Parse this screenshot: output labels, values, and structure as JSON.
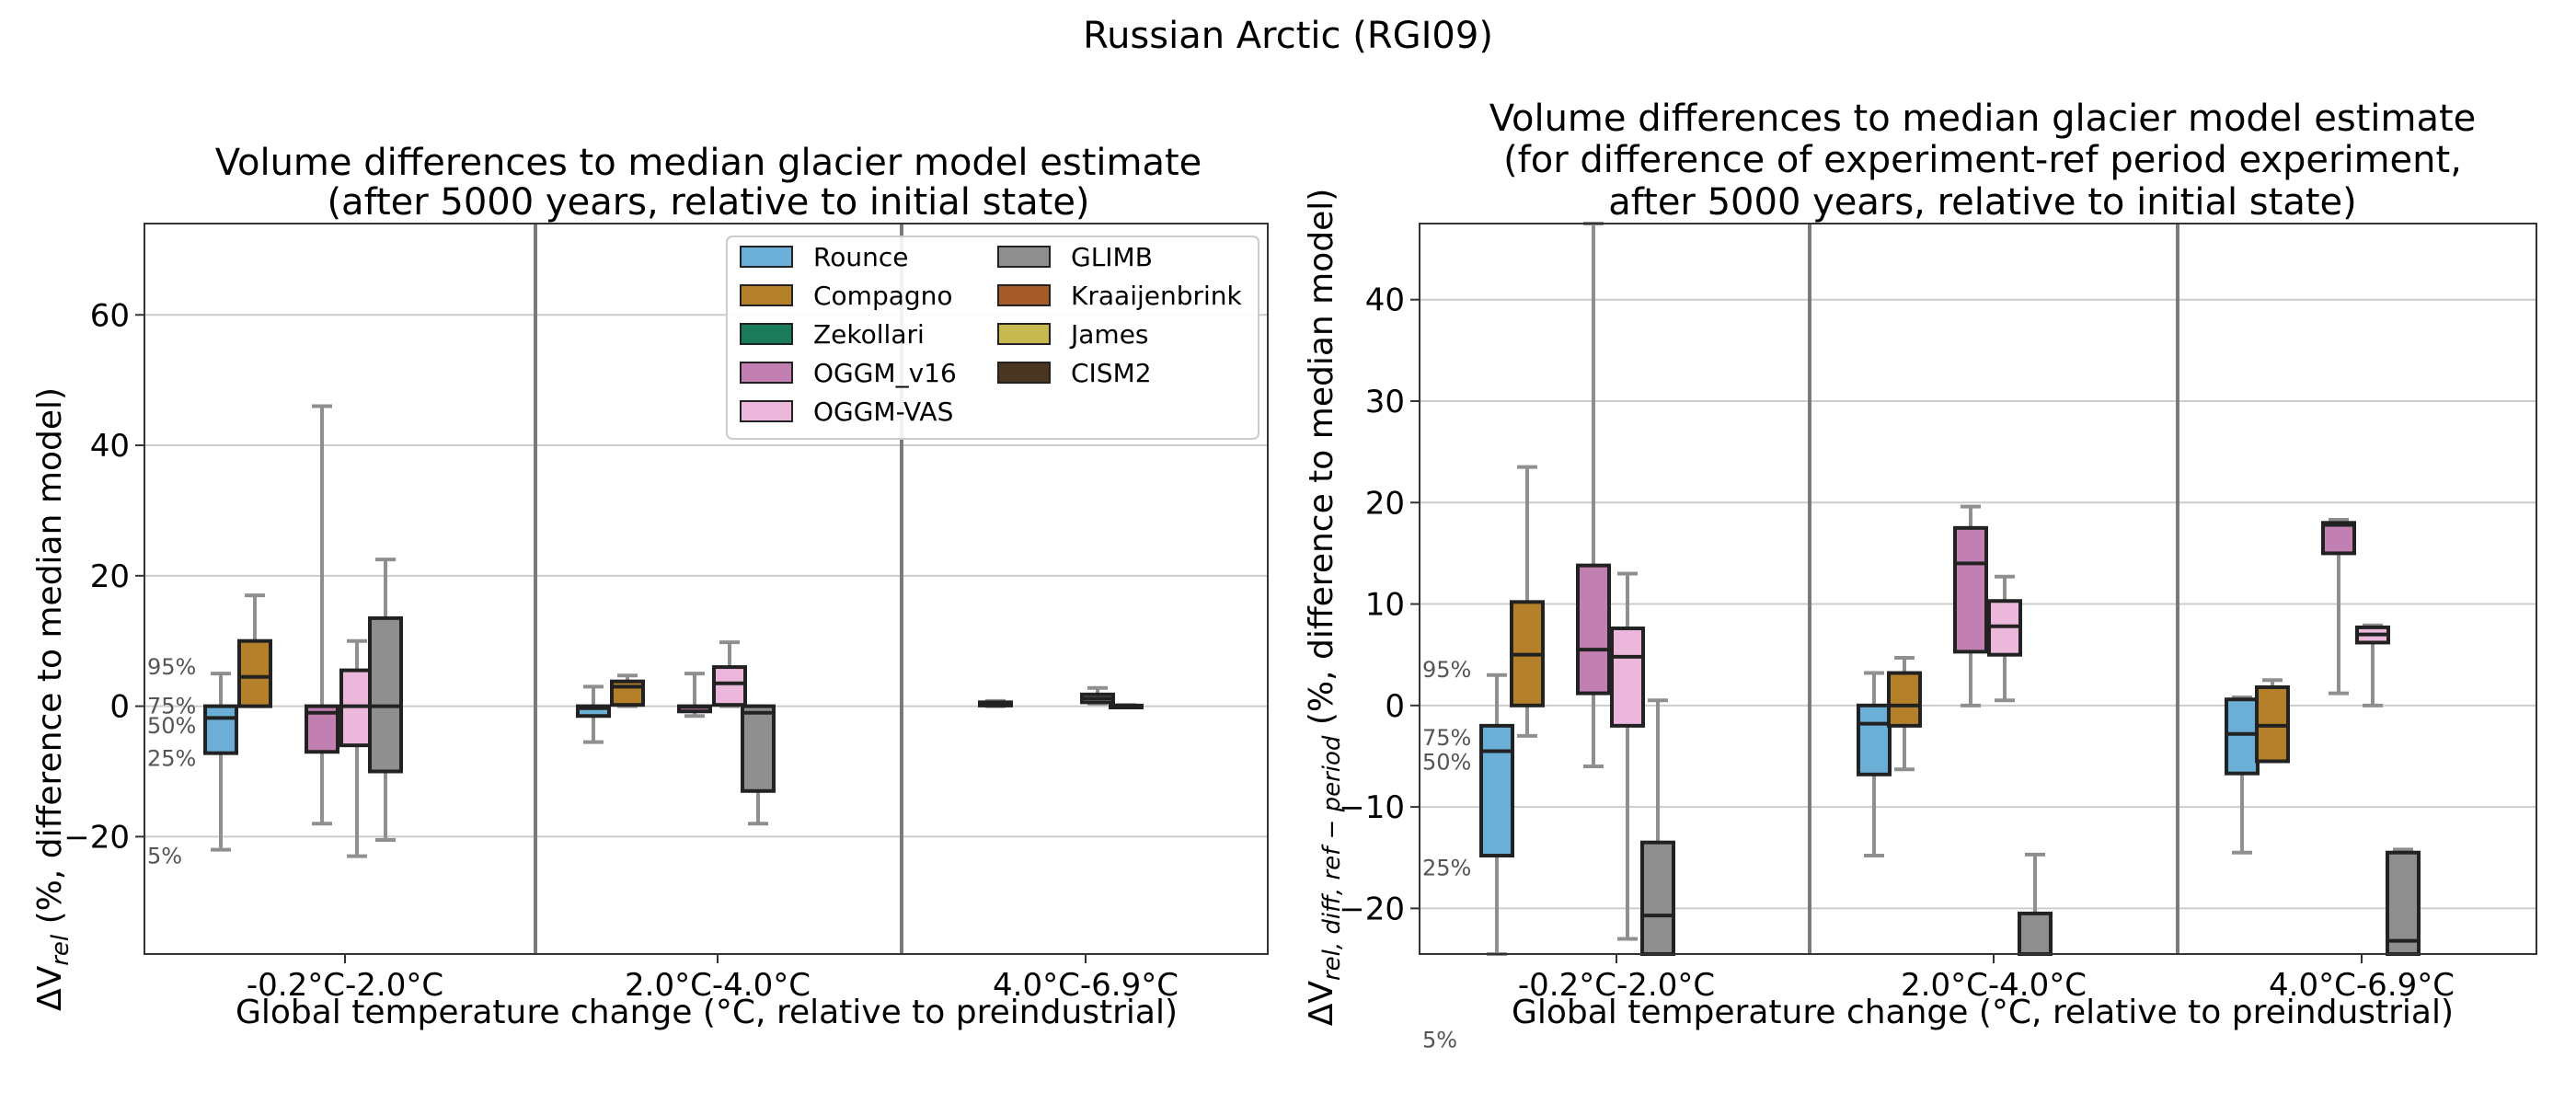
{
  "figure": {
    "title": "Russian Arctic (RGI09)"
  },
  "legend": {
    "placement": "upper-right of left panel",
    "items": [
      {
        "name": "Rounce",
        "color": "#6baed6"
      },
      {
        "name": "Compagno",
        "color": "#b5802a"
      },
      {
        "name": "Zekollari",
        "color": "#1b7a5a"
      },
      {
        "name": "OGGM_v16",
        "color": "#c27fb2"
      },
      {
        "name": "OGGM-VAS",
        "color": "#ebb8dc"
      },
      {
        "name": "GLIMB",
        "color": "#8f8f8f"
      },
      {
        "name": "Kraaijenbrink",
        "color": "#a65a2a"
      },
      {
        "name": "James",
        "color": "#c8b850"
      },
      {
        "name": "CISM2",
        "color": "#4a3520"
      }
    ]
  },
  "chart_data": [
    {
      "type": "box",
      "title_lines": [
        "Volume differences to median glacier model estimate",
        "(after 5000 years, relative to initial state)"
      ],
      "xlabel": "Global temperature change (°C, relative to preindustrial)",
      "ylabel": "ΔV_rel (%, difference to median model)",
      "ylim": [
        -38,
        74
      ],
      "yticks": [
        -20,
        0,
        20,
        40,
        60
      ],
      "grid": "horizontal",
      "categories": [
        "-0.2°C-2.0°C",
        "2.0°C-4.0°C",
        "4.0°C-6.9°C"
      ],
      "percentile_annotations": [
        {
          "label": "95%",
          "y": 6
        },
        {
          "label": "75%",
          "y": 0
        },
        {
          "label": "50%",
          "y": -3
        },
        {
          "label": "25%",
          "y": -8
        },
        {
          "label": "5%",
          "y": -23
        }
      ],
      "series": [
        {
          "name": "Rounce",
          "boxes": [
            {
              "category": 0,
              "whislo": -22,
              "q1": -7.2,
              "med": -1.8,
              "q3": 0,
              "whishi": 5
            },
            {
              "category": 1,
              "whislo": -5.5,
              "q1": -1.5,
              "med": -0.3,
              "q3": 0,
              "whishi": 3
            }
          ]
        },
        {
          "name": "Compagno",
          "boxes": [
            {
              "category": 0,
              "whislo": 0,
              "q1": 0,
              "med": 4.5,
              "q3": 10,
              "whishi": 17
            },
            {
              "category": 1,
              "whislo": 0,
              "q1": 0.2,
              "med": 3,
              "q3": 3.8,
              "whishi": 4.7
            },
            {
              "category": 2,
              "whislo": 0,
              "q1": 0.1,
              "med": 0.5,
              "q3": 0.6,
              "whishi": 0.8
            }
          ]
        },
        {
          "name": "OGGM_v16",
          "boxes": [
            {
              "category": 0,
              "whislo": -18,
              "q1": -7,
              "med": -1,
              "q3": 0,
              "whishi": 46
            },
            {
              "category": 1,
              "whislo": -1.5,
              "q1": -0.8,
              "med": -0.1,
              "q3": 0,
              "whishi": 5
            }
          ]
        },
        {
          "name": "OGGM-VAS",
          "boxes": [
            {
              "category": 0,
              "whislo": -23,
              "q1": -6,
              "med": 0,
              "q3": 5.5,
              "whishi": 10
            },
            {
              "category": 1,
              "whislo": 0,
              "q1": 0.2,
              "med": 3.5,
              "q3": 6,
              "whishi": 9.8
            },
            {
              "category": 2,
              "whislo": 0.4,
              "q1": 0.6,
              "med": 1.2,
              "q3": 1.8,
              "whishi": 2.8
            }
          ]
        },
        {
          "name": "GLIMB",
          "boxes": [
            {
              "category": 0,
              "whislo": -20.5,
              "q1": -10,
              "med": 0,
              "q3": 13.5,
              "whishi": 22.5
            },
            {
              "category": 1,
              "whislo": -18,
              "q1": -13,
              "med": -1,
              "q3": 0,
              "whishi": 0
            },
            {
              "category": 2,
              "whislo": -0.2,
              "q1": -0.2,
              "med": 0,
              "q3": 0.1,
              "whishi": 0.2
            }
          ]
        }
      ]
    },
    {
      "type": "box",
      "title_lines": [
        "Volume differences to median glacier model estimate",
        "(for difference of experiment-ref period experiment,",
        "after 5000 years, relative to initial state)"
      ],
      "xlabel": "Global temperature change (°C, relative to preindustrial)",
      "ylabel": "ΔV_rel,diff,ref−period (%, difference to median model)",
      "ylim": [
        -24.5,
        47.5
      ],
      "yticks": [
        -20,
        -10,
        0,
        10,
        20,
        30,
        40
      ],
      "grid": "horizontal",
      "categories": [
        "-0.2°C-2.0°C",
        "2.0°C-4.0°C",
        "4.0°C-6.9°C"
      ],
      "percentile_annotations": [
        {
          "label": "95%",
          "y": 3.5
        },
        {
          "label": "75%",
          "y": -3.2
        },
        {
          "label": "50%",
          "y": -5.6
        },
        {
          "label": "25%",
          "y": -16
        },
        {
          "label": "5%",
          "y": -33
        }
      ],
      "series": [
        {
          "name": "Rounce",
          "boxes": [
            {
              "category": 0,
              "whislo": -24.5,
              "q1": -14.8,
              "med": -4.5,
              "q3": -2,
              "whishi": 3
            },
            {
              "category": 1,
              "whislo": -14.8,
              "q1": -6.8,
              "med": -1.8,
              "q3": 0,
              "whishi": 3.2
            },
            {
              "category": 2,
              "whislo": -14.5,
              "q1": -6.7,
              "med": -2.8,
              "q3": 0.6,
              "whishi": 0.8
            }
          ]
        },
        {
          "name": "Compagno",
          "boxes": [
            {
              "category": 0,
              "whislo": -3,
              "q1": 0,
              "med": 5,
              "q3": 10.2,
              "whishi": 23.5
            },
            {
              "category": 1,
              "whislo": -6.3,
              "q1": -2,
              "med": 0,
              "q3": 3.2,
              "whishi": 4.7
            },
            {
              "category": 2,
              "whislo": -5.5,
              "q1": -5.5,
              "med": -2,
              "q3": 1.8,
              "whishi": 2.5
            }
          ]
        },
        {
          "name": "OGGM_v16",
          "boxes": [
            {
              "category": 0,
              "whislo": -6,
              "q1": 1.2,
              "med": 5.5,
              "q3": 13.8,
              "whishi": 47.5
            },
            {
              "category": 1,
              "whislo": 0,
              "q1": 5.3,
              "med": 14,
              "q3": 17.5,
              "whishi": 19.6
            },
            {
              "category": 2,
              "whislo": 1.2,
              "q1": 15,
              "med": 17.8,
              "q3": 18,
              "whishi": 18.3
            }
          ]
        },
        {
          "name": "OGGM-VAS",
          "boxes": [
            {
              "category": 0,
              "whislo": -23,
              "q1": -2,
              "med": 4.8,
              "q3": 7.6,
              "whishi": 13
            },
            {
              "category": 1,
              "whislo": 0.5,
              "q1": 5,
              "med": 7.8,
              "q3": 10.3,
              "whishi": 12.7
            },
            {
              "category": 2,
              "whislo": 0,
              "q1": 6.2,
              "med": 7,
              "q3": 7.7,
              "whishi": 7.9
            }
          ]
        },
        {
          "name": "GLIMB",
          "boxes": [
            {
              "category": 0,
              "whislo": -24.5,
              "q1": -24.5,
              "med": -20.7,
              "q3": -13.5,
              "whishi": 0.5
            },
            {
              "category": 1,
              "whislo": -24.5,
              "q1": -24.5,
              "med": -24.5,
              "q3": -20.5,
              "whishi": -14.7
            },
            {
              "category": 2,
              "whislo": -24.5,
              "q1": -24.5,
              "med": -23.2,
              "q3": -14.5,
              "whishi": -14.2
            }
          ]
        }
      ]
    }
  ]
}
